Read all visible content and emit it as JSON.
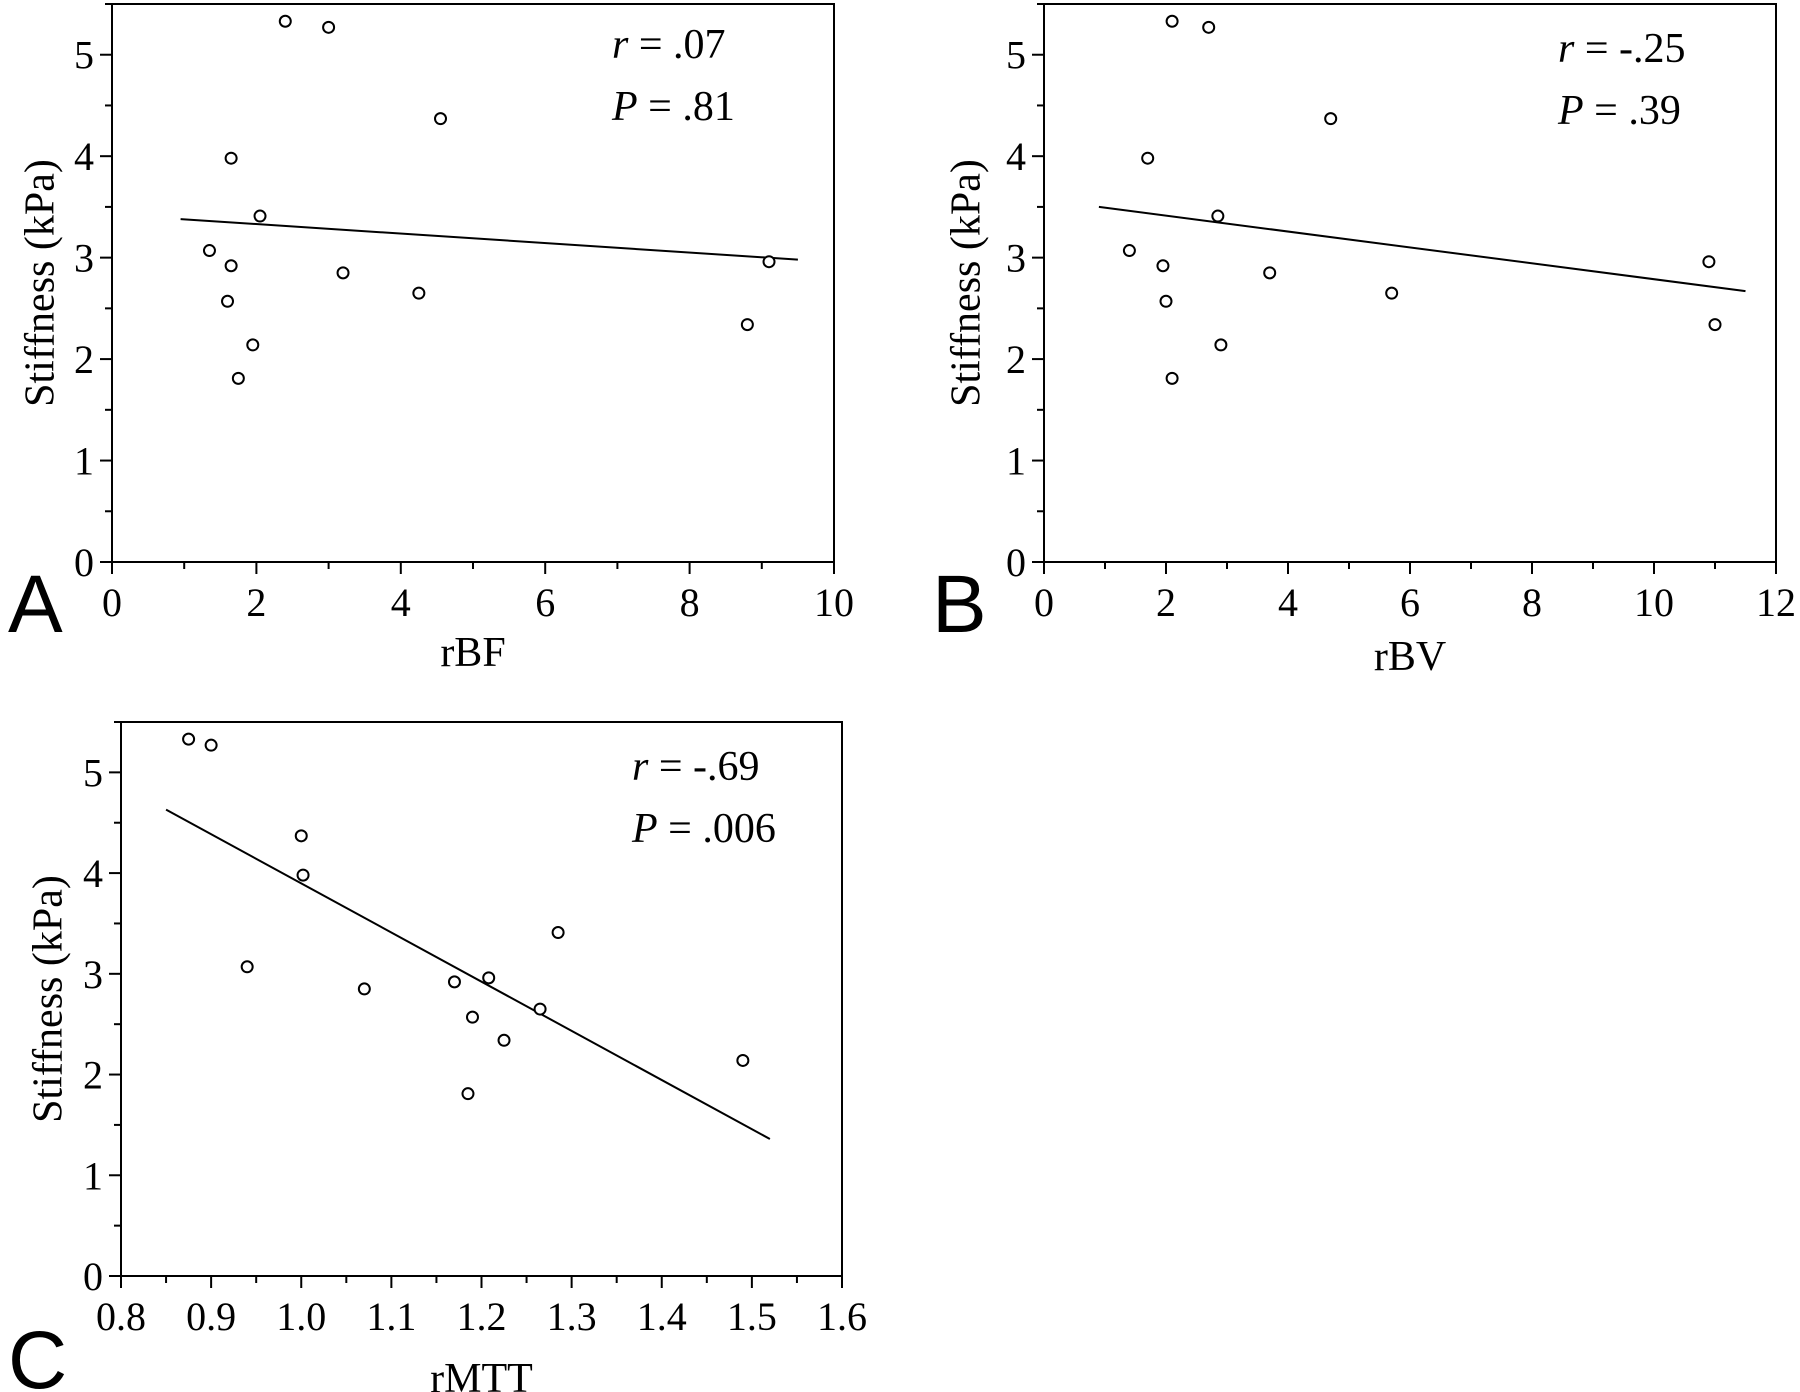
{
  "chart_data": [
    {
      "type": "scatter",
      "panel_letter": "A",
      "xlabel": "rBF",
      "ylabel": "Stiffness (kPa)",
      "xlim": [
        0,
        10
      ],
      "ylim": [
        0,
        5.5
      ],
      "xticks": [
        "0",
        "2",
        "4",
        "6",
        "8",
        "10"
      ],
      "yticks": [
        "0",
        "1",
        "2",
        "3",
        "4",
        "5"
      ],
      "xticks_values": [
        0,
        2,
        4,
        6,
        8,
        10
      ],
      "yticks_values": [
        0,
        1,
        2,
        3,
        4,
        5
      ],
      "points": [
        {
          "x": 2.4,
          "y": 5.33
        },
        {
          "x": 3.0,
          "y": 5.27
        },
        {
          "x": 4.55,
          "y": 4.37
        },
        {
          "x": 1.65,
          "y": 3.98
        },
        {
          "x": 2.05,
          "y": 3.41
        },
        {
          "x": 1.35,
          "y": 3.07
        },
        {
          "x": 1.65,
          "y": 2.92
        },
        {
          "x": 3.2,
          "y": 2.85
        },
        {
          "x": 9.1,
          "y": 2.96
        },
        {
          "x": 4.25,
          "y": 2.65
        },
        {
          "x": 1.6,
          "y": 2.57
        },
        {
          "x": 8.8,
          "y": 2.34
        },
        {
          "x": 1.95,
          "y": 2.14
        },
        {
          "x": 1.75,
          "y": 1.81
        }
      ],
      "fit_line": {
        "x": [
          0.95,
          9.5
        ],
        "y": [
          3.38,
          2.98
        ]
      },
      "annotations": {
        "r_label": "r",
        "r_value": " = .07",
        "p_label": "P",
        "p_value": " = .81"
      }
    },
    {
      "type": "scatter",
      "panel_letter": "B",
      "xlabel": "rBV",
      "ylabel": "Stiffness (kPa)",
      "xlim": [
        0,
        12
      ],
      "ylim": [
        0,
        5.5
      ],
      "xticks": [
        "0",
        "2",
        "4",
        "6",
        "8",
        "10",
        "12"
      ],
      "yticks": [
        "0",
        "1",
        "2",
        "3",
        "4",
        "5"
      ],
      "xticks_values": [
        0,
        2,
        4,
        6,
        8,
        10,
        12
      ],
      "yticks_values": [
        0,
        1,
        2,
        3,
        4,
        5
      ],
      "points": [
        {
          "x": 2.1,
          "y": 5.33
        },
        {
          "x": 2.7,
          "y": 5.27
        },
        {
          "x": 4.7,
          "y": 4.37
        },
        {
          "x": 1.7,
          "y": 3.98
        },
        {
          "x": 2.85,
          "y": 3.41
        },
        {
          "x": 1.4,
          "y": 3.07
        },
        {
          "x": 1.95,
          "y": 2.92
        },
        {
          "x": 3.7,
          "y": 2.85
        },
        {
          "x": 10.9,
          "y": 2.96
        },
        {
          "x": 5.7,
          "y": 2.65
        },
        {
          "x": 2.0,
          "y": 2.57
        },
        {
          "x": 11.0,
          "y": 2.34
        },
        {
          "x": 2.9,
          "y": 2.14
        },
        {
          "x": 2.1,
          "y": 1.81
        }
      ],
      "fit_line": {
        "x": [
          0.9,
          11.5
        ],
        "y": [
          3.5,
          2.67
        ]
      },
      "annotations": {
        "r_label": "r",
        "r_value": " = -.25",
        "p_label": "P",
        "p_value": " = .39"
      }
    },
    {
      "type": "scatter",
      "panel_letter": "C",
      "xlabel": "rMTT",
      "ylabel": "Stiffness (kPa)",
      "xlim": [
        0.8,
        1.6
      ],
      "ylim": [
        0,
        5.5
      ],
      "xticks": [
        "0.8",
        "0.9",
        "1.0",
        "1.1",
        "1.2",
        "1.3",
        "1.4",
        "1.5",
        "1.6"
      ],
      "yticks": [
        "0",
        "1",
        "2",
        "3",
        "4",
        "5"
      ],
      "xticks_values": [
        0.8,
        0.9,
        1.0,
        1.1,
        1.2,
        1.3,
        1.4,
        1.5,
        1.6
      ],
      "yticks_values": [
        0,
        1,
        2,
        3,
        4,
        5
      ],
      "points": [
        {
          "x": 0.875,
          "y": 5.33
        },
        {
          "x": 0.9,
          "y": 5.27
        },
        {
          "x": 1.0,
          "y": 4.37
        },
        {
          "x": 1.002,
          "y": 3.98
        },
        {
          "x": 1.285,
          "y": 3.41
        },
        {
          "x": 0.94,
          "y": 3.07
        },
        {
          "x": 1.17,
          "y": 2.92
        },
        {
          "x": 1.07,
          "y": 2.85
        },
        {
          "x": 1.208,
          "y": 2.96
        },
        {
          "x": 1.265,
          "y": 2.65
        },
        {
          "x": 1.19,
          "y": 2.57
        },
        {
          "x": 1.225,
          "y": 2.34
        },
        {
          "x": 1.49,
          "y": 2.14
        },
        {
          "x": 1.185,
          "y": 1.81
        }
      ],
      "fit_line": {
        "x": [
          0.85,
          1.52
        ],
        "y": [
          4.63,
          1.36
        ]
      },
      "annotations": {
        "r_label": "r",
        "r_value": " = -.69",
        "p_label": "P",
        "p_value": " = .006"
      }
    }
  ]
}
